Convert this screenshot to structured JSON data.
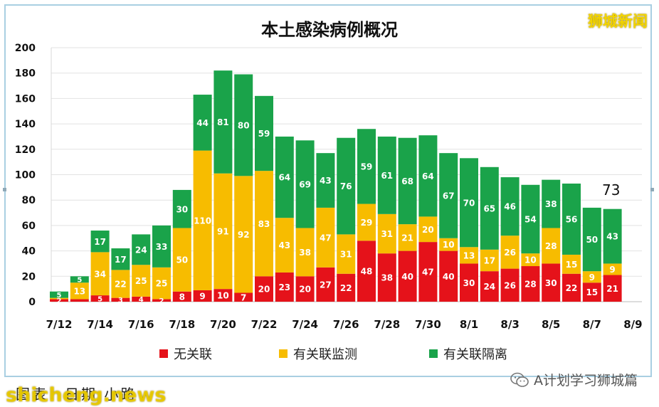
{
  "title": "本土感染病例概况",
  "watermark_top": "狮城新闻",
  "watermark_bottom": "shicheng.news",
  "source_note": "图表：日期 小路",
  "wechat_label": "A计划学习狮城篇",
  "colors": {
    "unlinked": "#e5121a",
    "linked_monitored": "#f7bc00",
    "linked_quarantined": "#1aa34a"
  },
  "chart_data": {
    "type": "bar",
    "stacked": true,
    "title": "本土感染病例概况",
    "categories": [
      "7/12",
      "7/13",
      "7/14",
      "7/15",
      "7/16",
      "7/17",
      "7/18",
      "7/19",
      "7/20",
      "7/21",
      "7/22",
      "7/23",
      "7/24",
      "7/25",
      "7/26",
      "7/27",
      "7/28",
      "7/29",
      "7/30",
      "7/31",
      "8/1",
      "8/2",
      "8/3",
      "8/4",
      "8/5",
      "8/6",
      "8/7",
      "8/8"
    ],
    "x_tick_labels": [
      "7/12",
      "7/14",
      "7/16",
      "7/18",
      "7/20",
      "7/22",
      "7/24",
      "7/26",
      "7/28",
      "7/30",
      "8/1",
      "8/3",
      "8/5",
      "8/7",
      "8/9"
    ],
    "ylim": [
      0,
      200
    ],
    "yticks": [
      0,
      20,
      40,
      60,
      80,
      100,
      120,
      140,
      160,
      180,
      200
    ],
    "grid": true,
    "legend_position": "bottom",
    "series": [
      {
        "name": "无关联",
        "color_key": "unlinked",
        "values": [
          2,
          2,
          5,
          3,
          4,
          2,
          8,
          9,
          10,
          7,
          20,
          23,
          20,
          27,
          22,
          48,
          38,
          40,
          47,
          40,
          30,
          24,
          26,
          28,
          30,
          22,
          15,
          21
        ],
        "labels": [
          "2",
          "",
          "5",
          "3",
          "4",
          "2",
          "8",
          "9",
          "10",
          "7",
          "20",
          "23",
          "20",
          "27",
          "22",
          "48",
          "38",
          "40",
          "47",
          "40",
          "30",
          "24",
          "26",
          "28",
          "30",
          "22",
          "15",
          "21"
        ]
      },
      {
        "name": "有关联监测",
        "color_key": "linked_monitored",
        "values": [
          1,
          13,
          34,
          22,
          25,
          25,
          50,
          110,
          91,
          92,
          83,
          43,
          38,
          47,
          31,
          29,
          31,
          21,
          20,
          10,
          13,
          17,
          26,
          10,
          28,
          15,
          9,
          9
        ],
        "labels": [
          "",
          "13",
          "34",
          "22",
          "25",
          "25",
          "50",
          "110",
          "91",
          "92",
          "83",
          "43",
          "38",
          "47",
          "31",
          "29",
          "31",
          "21",
          "20",
          "10",
          "13",
          "17",
          "26",
          "10",
          "28",
          "15",
          "9",
          "9"
        ]
      },
      {
        "name": "有关联隔离",
        "color_key": "linked_quarantined",
        "values": [
          5,
          5,
          17,
          17,
          24,
          33,
          30,
          44,
          81,
          80,
          59,
          64,
          69,
          43,
          76,
          59,
          61,
          68,
          64,
          67,
          70,
          65,
          46,
          54,
          38,
          56,
          50,
          43
        ],
        "labels": [
          "5",
          "5",
          "17",
          "17",
          "24",
          "33",
          "30",
          "44",
          "81",
          "80",
          "59",
          "64",
          "69",
          "43",
          "76",
          "59",
          "61",
          "68",
          "64",
          "67",
          "70",
          "65",
          "46",
          "54",
          "38",
          "56",
          "50",
          "43"
        ]
      }
    ],
    "annotations": [
      {
        "category": "8/8",
        "text": "73"
      }
    ]
  }
}
